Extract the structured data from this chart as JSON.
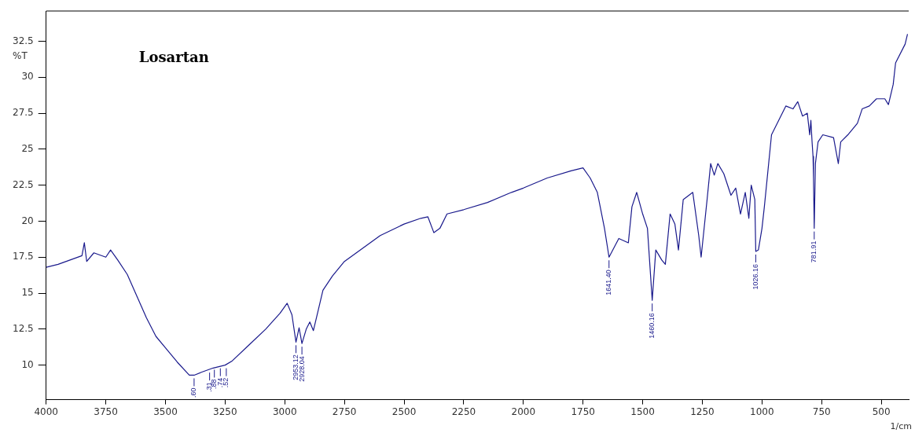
{
  "chart_data": {
    "type": "line",
    "title": "Losartan",
    "xlabel": "1/cm",
    "ylabel": "%T",
    "x": [
      4000,
      3950,
      3900,
      3850,
      3840,
      3830,
      3800,
      3750,
      3730,
      3700,
      3660,
      3620,
      3580,
      3540,
      3500,
      3450,
      3400,
      3380,
      3350,
      3300,
      3250,
      3220,
      3150,
      3080,
      3020,
      2990,
      2970,
      2953,
      2940,
      2928,
      2910,
      2895,
      2880,
      2860,
      2840,
      2800,
      2750,
      2700,
      2650,
      2600,
      2500,
      2430,
      2400,
      2375,
      2350,
      2320,
      2250,
      2150,
      2050,
      2000,
      1900,
      1800,
      1750,
      1720,
      1690,
      1660,
      1641,
      1625,
      1600,
      1560,
      1545,
      1525,
      1500,
      1480,
      1470,
      1460,
      1445,
      1420,
      1405,
      1385,
      1365,
      1350,
      1330,
      1290,
      1265,
      1255,
      1230,
      1215,
      1200,
      1185,
      1160,
      1130,
      1110,
      1090,
      1070,
      1055,
      1045,
      1030,
      1026,
      1015,
      1000,
      990,
      960,
      930,
      900,
      870,
      850,
      830,
      810,
      800,
      795,
      790,
      786,
      784,
      781,
      776,
      765,
      745,
      700,
      680,
      670,
      640,
      600,
      580,
      550,
      520,
      485,
      470,
      450,
      440,
      400,
      390
    ],
    "series": [
      {
        "color": "#1a1a8c",
        "values": [
          16.8,
          17.0,
          17.3,
          17.6,
          18.5,
          17.2,
          17.8,
          17.5,
          18.0,
          17.3,
          16.3,
          14.8,
          13.3,
          12.0,
          11.2,
          10.2,
          9.3,
          9.3,
          9.5,
          9.8,
          10.0,
          10.3,
          11.4,
          12.5,
          13.6,
          14.3,
          13.5,
          11.6,
          12.6,
          11.5,
          12.5,
          13.0,
          12.4,
          13.8,
          15.2,
          16.2,
          17.2,
          17.8,
          18.4,
          19.0,
          19.8,
          20.2,
          20.3,
          19.2,
          19.5,
          20.5,
          20.8,
          21.3,
          22.0,
          22.3,
          23.0,
          23.5,
          23.7,
          23.0,
          22.0,
          19.5,
          17.5,
          18.0,
          18.8,
          18.5,
          21.0,
          22.0,
          20.5,
          19.5,
          17.0,
          14.5,
          18.0,
          17.3,
          17.0,
          20.5,
          19.8,
          18.0,
          21.5,
          22.0,
          19.0,
          17.5,
          21.5,
          24.0,
          23.2,
          24.0,
          23.3,
          21.8,
          22.3,
          20.5,
          22.0,
          20.2,
          22.5,
          21.5,
          17.9,
          18.0,
          19.5,
          21.0,
          26.0,
          27.0,
          28.0,
          27.8,
          28.3,
          27.3,
          27.5,
          26.0,
          27.0,
          25.5,
          24.5,
          23.0,
          19.5,
          24.0,
          25.5,
          26.0,
          25.8,
          24.0,
          25.5,
          26.0,
          26.8,
          27.8,
          28.0,
          28.5,
          28.5,
          28.1,
          29.5,
          31.0,
          32.3,
          33.0
        ]
      }
    ],
    "xlim": [
      4000,
      385
    ],
    "xticks": [
      4000,
      3750,
      3500,
      3250,
      3000,
      2750,
      2500,
      2250,
      2000,
      1750,
      1500,
      1250,
      1000,
      750,
      500
    ],
    "ylim": [
      7.6,
      34.6
    ],
    "yticks": [
      10,
      12.5,
      15,
      17.5,
      20,
      22.5,
      25,
      27.5,
      30,
      32.5
    ],
    "annotations": [
      {
        "text": ".60",
        "x": 3380,
        "y": 9.3
      },
      {
        "text": ".31",
        "x": 3315,
        "y": 9.7
      },
      {
        "text": ".88",
        "x": 3295,
        "y": 9.9
      },
      {
        "text": ".74",
        "x": 3270,
        "y": 10.0
      },
      {
        "text": ".52",
        "x": 3245,
        "y": 10.0
      },
      {
        "text": "2953.12",
        "x": 2953,
        "y": 11.6
      },
      {
        "text": "2928.04",
        "x": 2928,
        "y": 11.5
      },
      {
        "text": "1641.40",
        "x": 1641,
        "y": 17.5
      },
      {
        "text": "1460.16",
        "x": 1460,
        "y": 14.5
      },
      {
        "text": "1026.16",
        "x": 1026,
        "y": 17.9
      },
      {
        "text": "781.91",
        "x": 781,
        "y": 19.5
      }
    ],
    "grid": false,
    "legend": false,
    "marker": "none",
    "line_style": "solid"
  }
}
